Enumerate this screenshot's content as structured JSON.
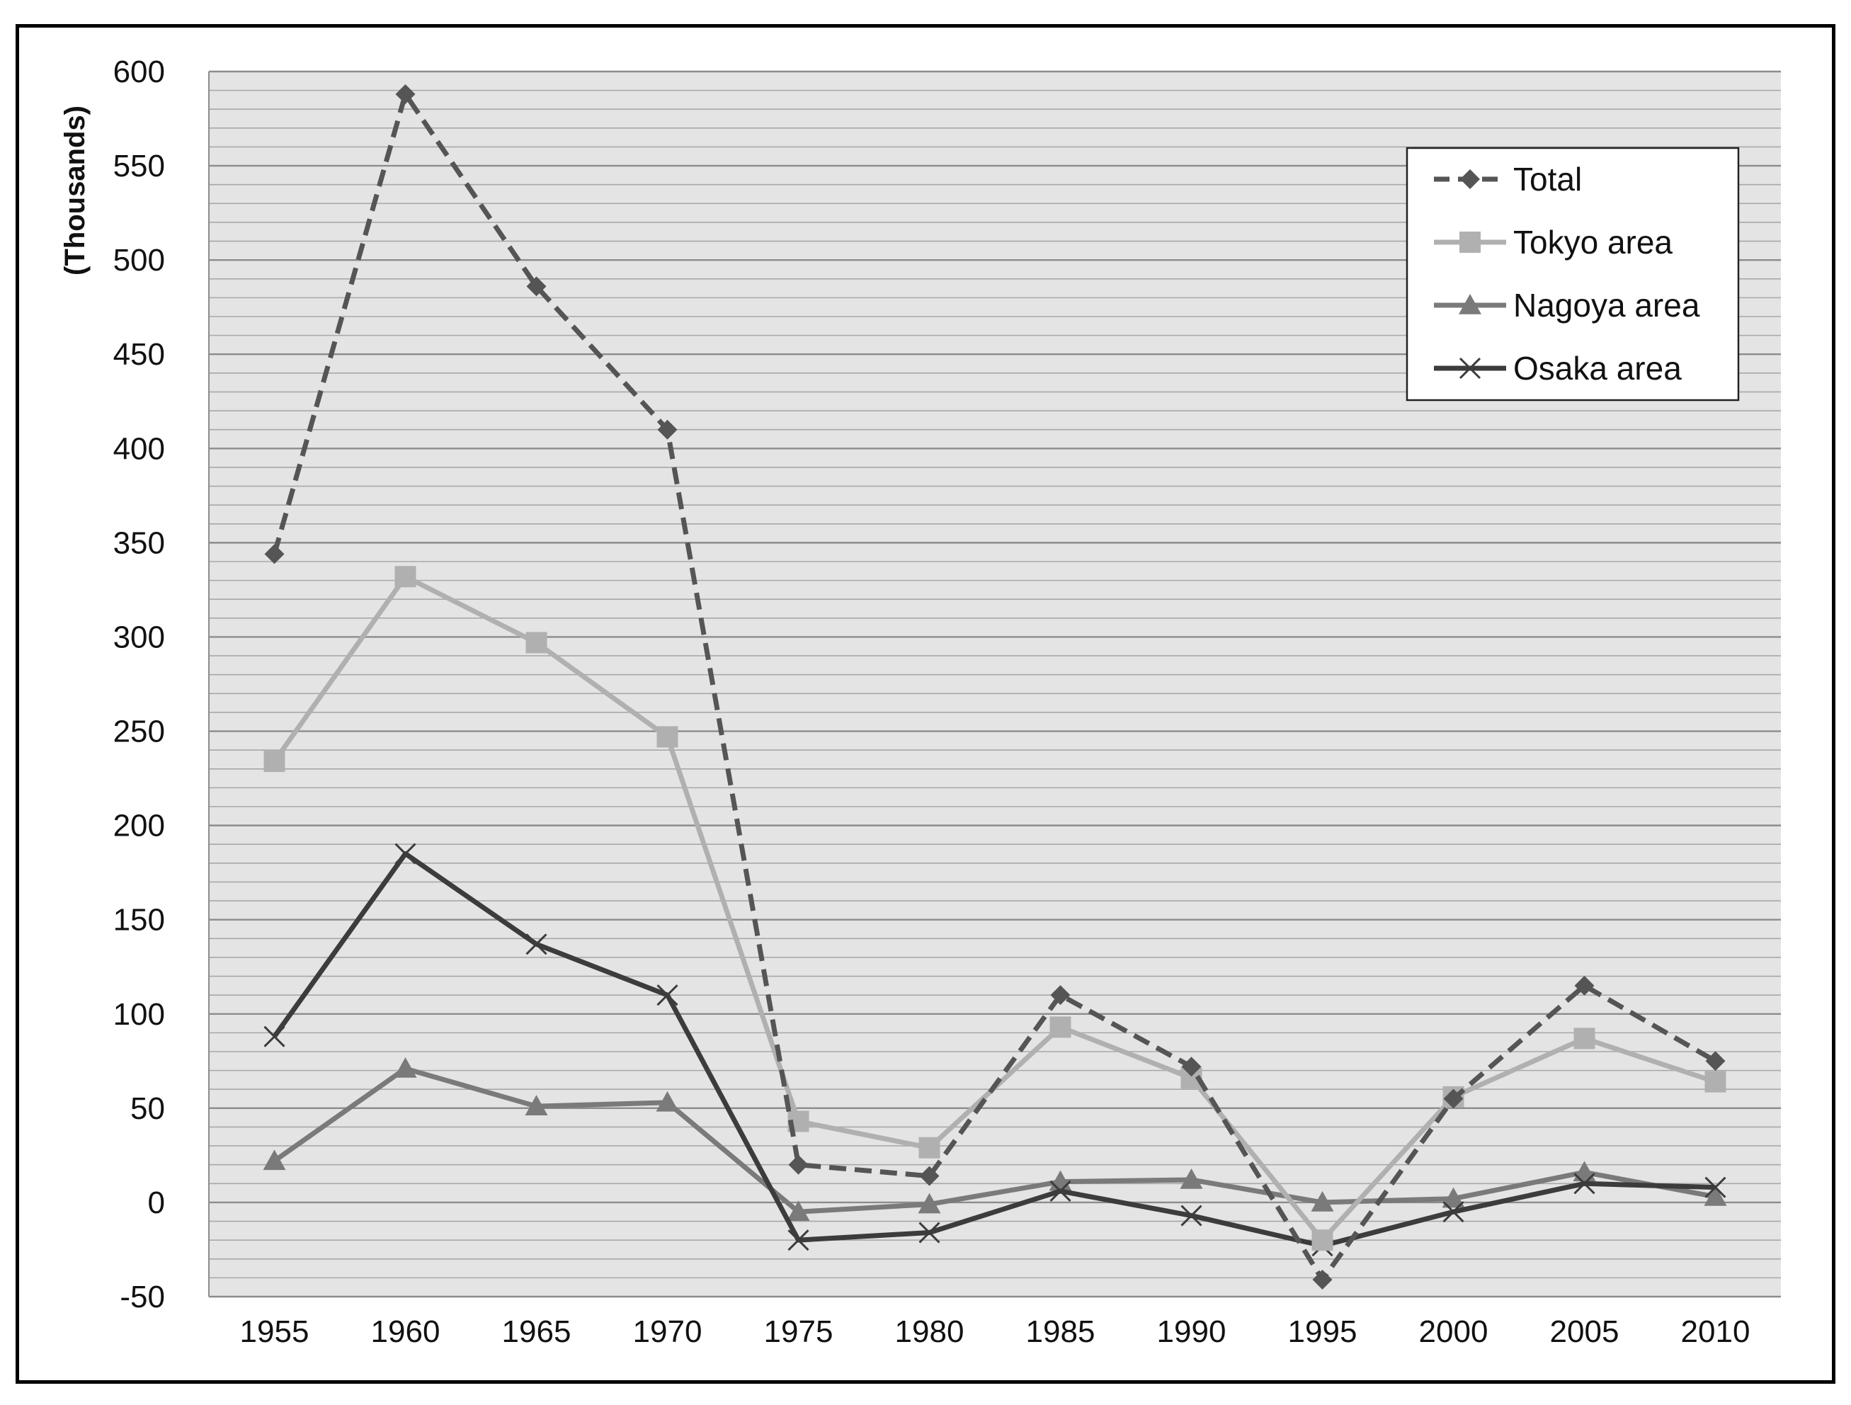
{
  "chart_data": {
    "type": "line",
    "title": "",
    "xlabel": "",
    "ylabel": "(Thousands)",
    "categories": [
      "1955",
      "1960",
      "1965",
      "1970",
      "1975",
      "1980",
      "1985",
      "1990",
      "1995",
      "2000",
      "2005",
      "2010"
    ],
    "ylim": [
      -50,
      600
    ],
    "yticks": [
      -50,
      0,
      50,
      100,
      150,
      200,
      250,
      300,
      350,
      400,
      450,
      500,
      550,
      600
    ],
    "minor_grid_step": 10,
    "grid": true,
    "legend_position": "top-right",
    "series": [
      {
        "name": "Total",
        "color": "#555555",
        "style": "dashed",
        "marker": "diamond",
        "values": [
          344,
          588,
          486,
          410,
          20,
          14,
          110,
          72,
          -41,
          55,
          115,
          75
        ]
      },
      {
        "name": "Tokyo area",
        "color": "#b0b0b0",
        "style": "solid",
        "marker": "square",
        "values": [
          234,
          332,
          297,
          247,
          43,
          29,
          93,
          66,
          -20,
          56,
          87,
          64
        ]
      },
      {
        "name": "Nagoya area",
        "color": "#7a7a7a",
        "style": "solid",
        "marker": "triangle",
        "values": [
          22,
          71,
          51,
          53,
          -5,
          -1,
          11,
          12,
          0,
          2,
          16,
          3
        ]
      },
      {
        "name": "Osaka area",
        "color": "#3c3c3c",
        "style": "solid",
        "marker": "x",
        "values": [
          88,
          185,
          137,
          110,
          -20,
          -16,
          6,
          -7,
          -23,
          -5,
          10,
          8
        ]
      }
    ]
  }
}
